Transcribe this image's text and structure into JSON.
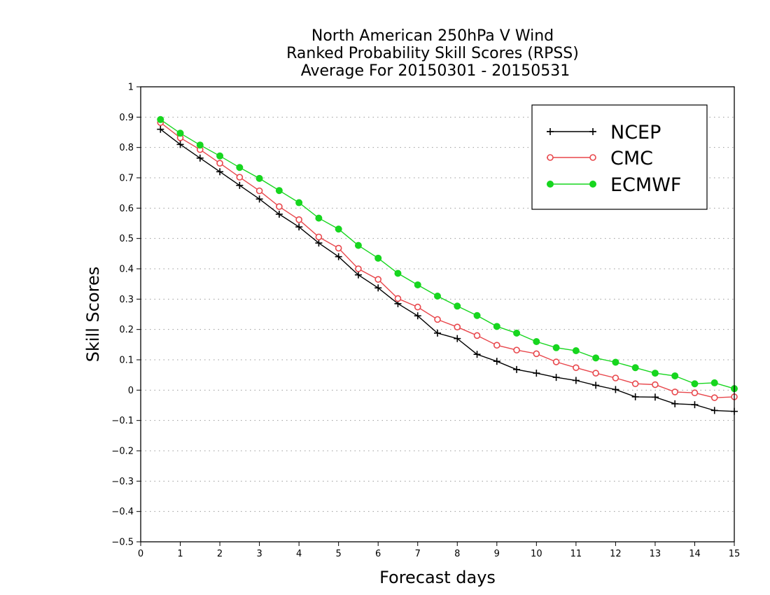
{
  "chart_data": {
    "type": "line",
    "title": [
      "North American 250hPa V Wind",
      "Ranked Probability Skill Scores (RPSS)",
      "Average For 20150301 - 20150531"
    ],
    "xlabel": "Forecast days",
    "ylabel": "Skill Scores",
    "xlim": [
      0,
      15
    ],
    "ylim": [
      -0.5,
      1
    ],
    "xticks": [
      0,
      1,
      2,
      3,
      4,
      5,
      6,
      7,
      8,
      9,
      10,
      11,
      12,
      13,
      14,
      15
    ],
    "xtick_labels": [
      "0",
      "1",
      "2",
      "3",
      "4",
      "5",
      "6",
      "7",
      "8",
      "9",
      "10",
      "11",
      "12",
      "13",
      "14",
      "15"
    ],
    "yticks": [
      -0.5,
      -0.4,
      -0.3,
      -0.2,
      -0.1,
      0,
      0.1,
      0.2,
      0.3,
      0.4,
      0.5,
      0.6,
      0.7,
      0.8,
      0.9,
      1
    ],
    "ytick_labels": [
      "−0.5",
      "−0.4",
      "−0.3",
      "−0.2",
      "−0.1",
      "0",
      "0.1",
      "0.2",
      "0.3",
      "0.4",
      "0.5",
      "0.6",
      "0.7",
      "0.8",
      "0.9",
      "1"
    ],
    "grid": "horizontal dotted",
    "legend_position": "top-right",
    "x": [
      0.5,
      1,
      1.5,
      2,
      2.5,
      3,
      3.5,
      4,
      4.5,
      5,
      5.5,
      6,
      6.5,
      7,
      7.5,
      8,
      8.5,
      9,
      9.5,
      10,
      10.5,
      11,
      11.5,
      12,
      12.5,
      13,
      13.5,
      14,
      14.5,
      15
    ],
    "series": [
      {
        "name": "NCEP",
        "color": "#000000",
        "marker": "plus",
        "values": [
          0.86,
          0.81,
          0.765,
          0.72,
          0.675,
          0.63,
          0.58,
          0.538,
          0.485,
          0.44,
          0.38,
          0.337,
          0.285,
          0.245,
          0.188,
          0.17,
          0.118,
          0.095,
          0.068,
          0.056,
          0.042,
          0.032,
          0.016,
          0.002,
          -0.022,
          -0.023,
          -0.045,
          -0.048,
          -0.067,
          -0.07
        ]
      },
      {
        "name": "CMC",
        "color": "#e8474c",
        "marker": "open-circle",
        "values": [
          0.882,
          0.832,
          0.793,
          0.748,
          0.702,
          0.657,
          0.605,
          0.562,
          0.505,
          0.468,
          0.4,
          0.365,
          0.302,
          0.274,
          0.233,
          0.208,
          0.18,
          0.148,
          0.132,
          0.12,
          0.093,
          0.074,
          0.056,
          0.04,
          0.021,
          0.018,
          -0.006,
          -0.009,
          -0.025,
          -0.022
        ]
      },
      {
        "name": "ECMWF",
        "color": "#17d61f",
        "marker": "filled-circle",
        "values": [
          0.892,
          0.847,
          0.808,
          0.772,
          0.734,
          0.698,
          0.658,
          0.618,
          0.567,
          0.531,
          0.477,
          0.435,
          0.385,
          0.347,
          0.31,
          0.277,
          0.246,
          0.21,
          0.188,
          0.16,
          0.14,
          0.13,
          0.106,
          0.092,
          0.074,
          0.056,
          0.047,
          0.021,
          0.024,
          0.005
        ]
      }
    ]
  }
}
